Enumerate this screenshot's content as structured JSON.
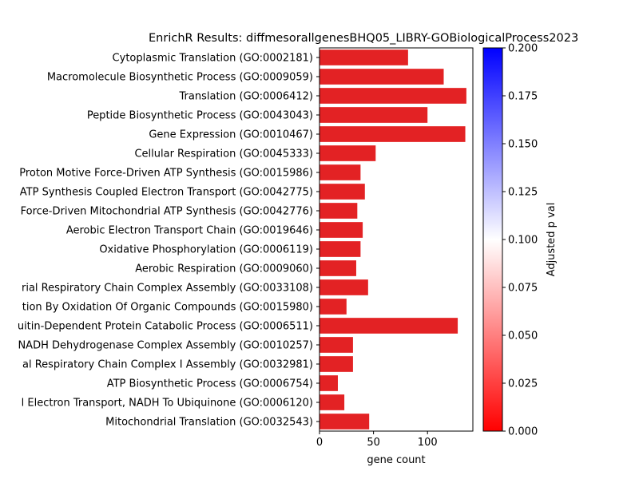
{
  "chart_data": {
    "type": "bar",
    "orientation": "horizontal",
    "title": "EnrichR Results: diffmesorallgenesBHQ05_LIBRY-GOBiologicalProcess2023",
    "xlabel": "gene count",
    "ylabel": "",
    "xlim": [
      0,
      142
    ],
    "xticks": [
      "0",
      "50",
      "100"
    ],
    "categories": [
      "Cytoplasmic Translation (GO:0002181)",
      "Macromolecule Biosynthetic Process (GO:0009059)",
      "Translation (GO:0006412)",
      "Peptide Biosynthetic Process (GO:0043043)",
      "Gene Expression (GO:0010467)",
      "Cellular Respiration (GO:0045333)",
      "Proton Motive Force-Driven ATP Synthesis (GO:0015986)",
      "ATP Synthesis Coupled Electron Transport (GO:0042775)",
      "Force-Driven Mitochondrial ATP Synthesis (GO:0042776)",
      "Aerobic Electron Transport Chain (GO:0019646)",
      "Oxidative Phosphorylation (GO:0006119)",
      "Aerobic Respiration (GO:0009060)",
      "rial Respiratory Chain Complex Assembly (GO:0033108)",
      "tion By Oxidation Of Organic Compounds (GO:0015980)",
      "uitin-Dependent Protein Catabolic Process (GO:0006511)",
      "NADH Dehydrogenase Complex Assembly (GO:0010257)",
      "al Respiratory Chain Complex I Assembly (GO:0032981)",
      "ATP Biosynthetic Process (GO:0006754)",
      "l Electron Transport, NADH To Ubiquinone (GO:0006120)",
      "Mitochondrial Translation (GO:0032543)"
    ],
    "values": [
      82,
      115,
      136,
      100,
      135,
      52,
      38,
      42,
      35,
      40,
      38,
      34,
      45,
      25,
      128,
      31,
      31,
      17,
      23,
      46
    ],
    "bar_color": "#e32224",
    "colorbar": {
      "label": "Adjusted p val",
      "range": [
        0,
        0.2
      ],
      "ticks": [
        "0.000",
        "0.025",
        "0.050",
        "0.075",
        "0.100",
        "0.125",
        "0.150",
        "0.175",
        "0.200"
      ],
      "colors": [
        "#ff0000",
        "#ffffff",
        "#0000ff"
      ]
    }
  }
}
